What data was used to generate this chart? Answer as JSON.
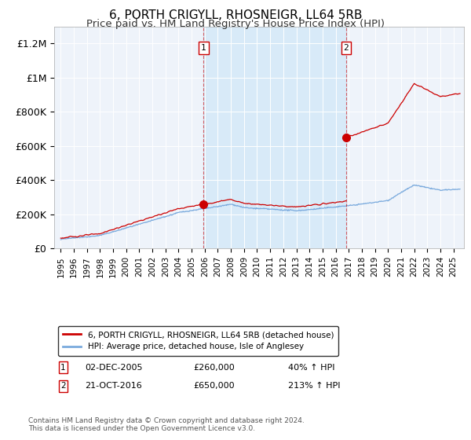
{
  "title": "6, PORTH CRIGYLL, RHOSNEIGR, LL64 5RB",
  "subtitle": "Price paid vs. HM Land Registry's House Price Index (HPI)",
  "ylabel_ticks": [
    0,
    200000,
    400000,
    600000,
    800000,
    1000000,
    1200000
  ],
  "ylabel_labels": [
    "£0",
    "£200K",
    "£400K",
    "£600K",
    "£800K",
    "£1M",
    "£1.2M"
  ],
  "ylim": [
    0,
    1300000
  ],
  "xlim_start": 1994.5,
  "xlim_end": 2025.8,
  "sale1_year": 2005.92,
  "sale1_price": 260000,
  "sale1_label": "02-DEC-2005",
  "sale1_pct": "40%",
  "sale2_year": 2016.8,
  "sale2_price": 650000,
  "sale2_label": "21-OCT-2016",
  "sale2_pct": "213%",
  "legend_line1": "6, PORTH CRIGYLL, RHOSNEIGR, LL64 5RB (detached house)",
  "legend_line2": "HPI: Average price, detached house, Isle of Anglesey",
  "footer": "Contains HM Land Registry data © Crown copyright and database right 2024.\nThis data is licensed under the Open Government Licence v3.0.",
  "line_color_red": "#cc0000",
  "line_color_blue": "#7aaadd",
  "fill_color": "#d8eaf8",
  "background_color": "#eef3fa",
  "title_fontsize": 11,
  "subtitle_fontsize": 9.5
}
